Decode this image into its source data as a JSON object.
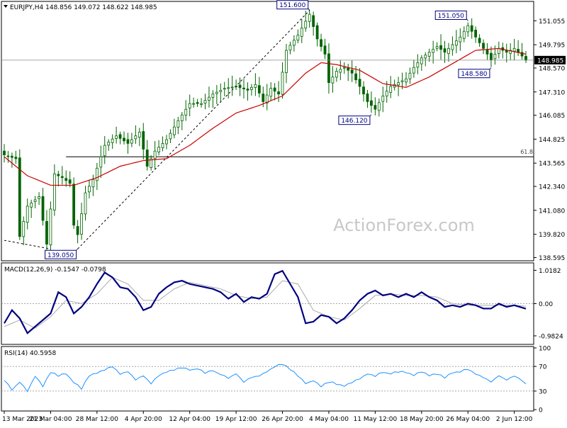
{
  "header": {
    "symbol_line": "EURJPY,H4  148.856 149.072 148.622 148.985"
  },
  "watermark": "ActionForex.com",
  "colors": {
    "candle": "#006400",
    "sma": "#cc0000",
    "macd": "#000080",
    "signal": "#aaaaaa",
    "rsi": "#1e90ff",
    "label_border": "#000080",
    "label_text": "#000080",
    "watermark": "#c8c8c8",
    "grid_dashed": "#888888",
    "current_price_tag_bg": "#000000",
    "current_price_tag_text": "#ffffff"
  },
  "chart_data": [
    {
      "type": "candlestick",
      "title": "EURJPY,H4",
      "ohlc_last": {
        "open": 148.856,
        "high": 149.072,
        "low": 148.622,
        "close": 148.985
      },
      "y_ticks": [
        151.055,
        149.795,
        148.57,
        147.31,
        146.085,
        144.825,
        143.565,
        142.34,
        141.08,
        139.82,
        138.595
      ],
      "ylim": [
        138.5,
        152.0
      ],
      "current_price": 148.985,
      "current_price_label": "148.985",
      "fib_level": {
        "price": 143.9,
        "label": "61.8"
      },
      "annotations": [
        {
          "label": "151.600",
          "x_index": 79,
          "price": 151.6
        },
        {
          "label": "151.050",
          "x_index": 120,
          "price": 151.05
        },
        {
          "label": "148.580",
          "x_index": 126,
          "price": 148.58
        },
        {
          "label": "146.120",
          "x_index": 95,
          "price": 146.12
        },
        {
          "label": "139.050",
          "x_index": 19,
          "price": 139.05
        }
      ],
      "trendline": {
        "from": {
          "x_index": 19,
          "price": 139.05
        },
        "to": {
          "x_index": 79,
          "price": 151.6
        }
      },
      "left_trendline": {
        "from": {
          "x_index": 0,
          "price": 139.5
        },
        "to": {
          "x_index": 12,
          "price": 139.05
        }
      },
      "moving_average_anchors": [
        [
          0,
          143.9
        ],
        [
          6,
          142.9
        ],
        [
          12,
          142.4
        ],
        [
          18,
          142.4
        ],
        [
          24,
          142.8
        ],
        [
          30,
          143.4
        ],
        [
          36,
          143.7
        ],
        [
          42,
          143.8
        ],
        [
          48,
          144.5
        ],
        [
          54,
          145.4
        ],
        [
          60,
          146.2
        ],
        [
          66,
          146.6
        ],
        [
          72,
          147.1
        ],
        [
          78,
          148.3
        ],
        [
          82,
          148.85
        ],
        [
          86,
          148.75
        ],
        [
          92,
          148.45
        ],
        [
          98,
          147.75
        ],
        [
          104,
          147.55
        ],
        [
          110,
          148.1
        ],
        [
          116,
          148.8
        ],
        [
          122,
          149.5
        ],
        [
          128,
          149.6
        ],
        [
          135,
          149.3
        ]
      ],
      "close_anchors": [
        [
          0,
          144.0
        ],
        [
          3,
          143.8
        ],
        [
          4,
          139.7
        ],
        [
          6,
          141.3
        ],
        [
          9,
          141.8
        ],
        [
          11,
          139.3
        ],
        [
          13,
          143.0
        ],
        [
          15,
          142.8
        ],
        [
          17,
          142.5
        ],
        [
          18,
          140.3
        ],
        [
          19,
          139.8
        ],
        [
          21,
          142.0
        ],
        [
          23,
          142.7
        ],
        [
          26,
          144.5
        ],
        [
          29,
          145.0
        ],
        [
          32,
          144.6
        ],
        [
          35,
          145.2
        ],
        [
          37,
          143.4
        ],
        [
          39,
          144.2
        ],
        [
          42,
          144.8
        ],
        [
          45,
          145.8
        ],
        [
          48,
          146.7
        ],
        [
          51,
          146.7
        ],
        [
          54,
          147.2
        ],
        [
          57,
          147.5
        ],
        [
          60,
          147.6
        ],
        [
          63,
          147.4
        ],
        [
          65,
          147.7
        ],
        [
          67,
          146.8
        ],
        [
          69,
          147.5
        ],
        [
          71,
          147.2
        ],
        [
          73,
          149.5
        ],
        [
          76,
          150.3
        ],
        [
          79,
          151.4
        ],
        [
          81,
          150.1
        ],
        [
          83,
          149.3
        ],
        [
          84,
          147.8
        ],
        [
          86,
          148.4
        ],
        [
          88,
          148.6
        ],
        [
          90,
          148.3
        ],
        [
          92,
          147.6
        ],
        [
          94,
          146.8
        ],
        [
          96,
          146.4
        ],
        [
          98,
          147.1
        ],
        [
          100,
          147.6
        ],
        [
          102,
          147.8
        ],
        [
          104,
          148.0
        ],
        [
          106,
          148.6
        ],
        [
          108,
          149.1
        ],
        [
          110,
          149.4
        ],
        [
          112,
          149.7
        ],
        [
          114,
          149.4
        ],
        [
          116,
          149.8
        ],
        [
          118,
          150.2
        ],
        [
          120,
          150.8
        ],
        [
          122,
          150.2
        ],
        [
          124,
          149.6
        ],
        [
          126,
          149.0
        ],
        [
          128,
          149.6
        ],
        [
          130,
          149.4
        ],
        [
          132,
          149.6
        ],
        [
          134,
          149.2
        ],
        [
          135,
          148.985
        ]
      ],
      "bar_count": 136
    },
    {
      "type": "line",
      "title": "MACD(12,26,9) -0.1547 -0.0798",
      "name": "MACD(12,26,9)",
      "macd_value": -0.1547,
      "signal_value": -0.0798,
      "y_ticks": [
        1.0182,
        0.0,
        -0.9824
      ],
      "y_tick_labels": [
        "1.0182",
        "0.00",
        "-0.9824"
      ],
      "ylim": [
        -1.2,
        1.2
      ],
      "macd_anchors": [
        [
          0,
          -0.6
        ],
        [
          2,
          -0.2
        ],
        [
          4,
          -0.45
        ],
        [
          6,
          -0.9
        ],
        [
          8,
          -0.7
        ],
        [
          10,
          -0.5
        ],
        [
          12,
          -0.3
        ],
        [
          14,
          0.35
        ],
        [
          16,
          0.2
        ],
        [
          18,
          -0.3
        ],
        [
          20,
          -0.1
        ],
        [
          22,
          0.2
        ],
        [
          24,
          0.6
        ],
        [
          26,
          0.95
        ],
        [
          28,
          0.8
        ],
        [
          30,
          0.5
        ],
        [
          32,
          0.45
        ],
        [
          34,
          0.2
        ],
        [
          36,
          -0.2
        ],
        [
          38,
          -0.1
        ],
        [
          40,
          0.3
        ],
        [
          42,
          0.5
        ],
        [
          44,
          0.65
        ],
        [
          46,
          0.7
        ],
        [
          48,
          0.6
        ],
        [
          50,
          0.55
        ],
        [
          52,
          0.5
        ],
        [
          54,
          0.45
        ],
        [
          56,
          0.35
        ],
        [
          58,
          0.15
        ],
        [
          60,
          0.3
        ],
        [
          62,
          0.05
        ],
        [
          64,
          0.2
        ],
        [
          66,
          0.15
        ],
        [
          68,
          0.3
        ],
        [
          70,
          0.9
        ],
        [
          72,
          1.0
        ],
        [
          74,
          0.6
        ],
        [
          76,
          0.2
        ],
        [
          78,
          -0.6
        ],
        [
          80,
          -0.55
        ],
        [
          82,
          -0.35
        ],
        [
          84,
          -0.4
        ],
        [
          86,
          -0.6
        ],
        [
          88,
          -0.45
        ],
        [
          90,
          -0.2
        ],
        [
          92,
          0.1
        ],
        [
          94,
          0.3
        ],
        [
          96,
          0.4
        ],
        [
          98,
          0.25
        ],
        [
          100,
          0.3
        ],
        [
          102,
          0.2
        ],
        [
          104,
          0.3
        ],
        [
          106,
          0.2
        ],
        [
          108,
          0.35
        ],
        [
          110,
          0.2
        ],
        [
          112,
          0.1
        ],
        [
          114,
          -0.1
        ],
        [
          116,
          -0.05
        ],
        [
          118,
          -0.1
        ],
        [
          120,
          0.0
        ],
        [
          122,
          -0.05
        ],
        [
          124,
          -0.15
        ],
        [
          126,
          -0.15
        ],
        [
          128,
          0.0
        ],
        [
          130,
          -0.1
        ],
        [
          132,
          -0.05
        ],
        [
          135,
          -0.1547
        ]
      ],
      "signal_anchors": [
        [
          0,
          -0.7
        ],
        [
          4,
          -0.5
        ],
        [
          8,
          -0.75
        ],
        [
          12,
          -0.4
        ],
        [
          16,
          0.1
        ],
        [
          20,
          0.0
        ],
        [
          24,
          0.3
        ],
        [
          28,
          0.8
        ],
        [
          32,
          0.6
        ],
        [
          36,
          0.1
        ],
        [
          40,
          0.1
        ],
        [
          44,
          0.45
        ],
        [
          48,
          0.65
        ],
        [
          52,
          0.55
        ],
        [
          56,
          0.45
        ],
        [
          60,
          0.25
        ],
        [
          64,
          0.15
        ],
        [
          68,
          0.2
        ],
        [
          72,
          0.7
        ],
        [
          76,
          0.6
        ],
        [
          80,
          -0.2
        ],
        [
          84,
          -0.4
        ],
        [
          88,
          -0.5
        ],
        [
          92,
          -0.15
        ],
        [
          96,
          0.25
        ],
        [
          100,
          0.3
        ],
        [
          104,
          0.25
        ],
        [
          108,
          0.25
        ],
        [
          112,
          0.2
        ],
        [
          116,
          0.0
        ],
        [
          120,
          -0.05
        ],
        [
          124,
          -0.05
        ],
        [
          128,
          -0.05
        ],
        [
          132,
          -0.05
        ],
        [
          135,
          -0.0798
        ]
      ]
    },
    {
      "type": "line",
      "title": "RSI(14) 40.5958",
      "name": "RSI(14)",
      "value": 40.5958,
      "y_ticks": [
        100,
        70,
        30,
        0
      ],
      "ylim": [
        0,
        100
      ],
      "reference_levels": [
        70,
        30
      ],
      "rsi_anchors": [
        [
          0,
          48
        ],
        [
          2,
          32
        ],
        [
          4,
          45
        ],
        [
          6,
          30
        ],
        [
          8,
          55
        ],
        [
          10,
          38
        ],
        [
          12,
          60
        ],
        [
          14,
          55
        ],
        [
          16,
          58
        ],
        [
          18,
          44
        ],
        [
          20,
          34
        ],
        [
          22,
          55
        ],
        [
          24,
          60
        ],
        [
          26,
          65
        ],
        [
          28,
          70
        ],
        [
          30,
          58
        ],
        [
          32,
          62
        ],
        [
          34,
          48
        ],
        [
          36,
          55
        ],
        [
          38,
          43
        ],
        [
          40,
          55
        ],
        [
          42,
          62
        ],
        [
          44,
          65
        ],
        [
          46,
          68
        ],
        [
          48,
          64
        ],
        [
          50,
          66
        ],
        [
          52,
          60
        ],
        [
          54,
          63
        ],
        [
          56,
          57
        ],
        [
          58,
          52
        ],
        [
          60,
          58
        ],
        [
          62,
          45
        ],
        [
          64,
          52
        ],
        [
          66,
          55
        ],
        [
          68,
          62
        ],
        [
          70,
          70
        ],
        [
          72,
          74
        ],
        [
          74,
          65
        ],
        [
          76,
          55
        ],
        [
          78,
          42
        ],
        [
          80,
          47
        ],
        [
          82,
          38
        ],
        [
          84,
          45
        ],
        [
          86,
          42
        ],
        [
          88,
          38
        ],
        [
          90,
          44
        ],
        [
          92,
          50
        ],
        [
          94,
          58
        ],
        [
          96,
          55
        ],
        [
          98,
          60
        ],
        [
          100,
          58
        ],
        [
          102,
          62
        ],
        [
          104,
          60
        ],
        [
          106,
          56
        ],
        [
          108,
          62
        ],
        [
          110,
          55
        ],
        [
          112,
          58
        ],
        [
          114,
          52
        ],
        [
          116,
          60
        ],
        [
          118,
          62
        ],
        [
          120,
          65
        ],
        [
          122,
          58
        ],
        [
          124,
          52
        ],
        [
          126,
          45
        ],
        [
          128,
          55
        ],
        [
          130,
          48
        ],
        [
          132,
          55
        ],
        [
          134,
          47
        ],
        [
          135,
          40.5958
        ]
      ]
    }
  ],
  "x_axis": {
    "labels": [
      {
        "text": "13 Mar 2023",
        "x_index": 0
      },
      {
        "text": "21 Mar 04:00",
        "x_index": 12
      },
      {
        "text": "28 Mar 12:00",
        "x_index": 24
      },
      {
        "text": "4 Apr 20:00",
        "x_index": 36
      },
      {
        "text": "12 Apr 04:00",
        "x_index": 48
      },
      {
        "text": "19 Apr 12:00",
        "x_index": 60
      },
      {
        "text": "26 Apr 20:00",
        "x_index": 72
      },
      {
        "text": "4 May 04:00",
        "x_index": 84
      },
      {
        "text": "11 May 12:00",
        "x_index": 96
      },
      {
        "text": "18 May 20:00",
        "x_index": 108
      },
      {
        "text": "26 May 04:00",
        "x_index": 120
      },
      {
        "text": "2 Jun 12:00",
        "x_index": 132
      }
    ]
  }
}
